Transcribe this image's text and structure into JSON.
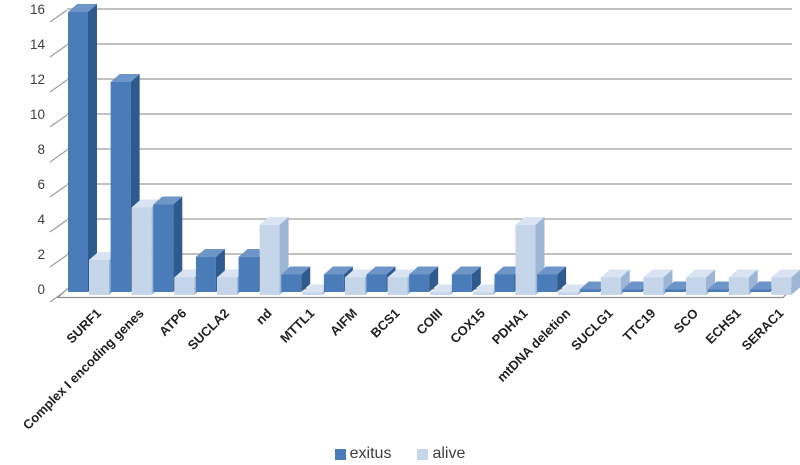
{
  "chart_data": {
    "type": "bar",
    "style": "3d-clustered-column",
    "title": "",
    "xlabel": "",
    "ylabel": "",
    "categories": [
      "SURF1",
      "Complex I encoding genes",
      "ATP6",
      "SUCLA2",
      "nd",
      "MTTL1",
      "AIFM",
      "BCS1",
      "COIII",
      "COX15",
      "PDHA1",
      "mtDNA deletion",
      "SUCLG1",
      "TTC19",
      "SCO",
      "ECHS1",
      "SERAC1"
    ],
    "series": [
      {
        "name": "exitus",
        "values": [
          16,
          12,
          5,
          2,
          2,
          1,
          1,
          1,
          1,
          1,
          1,
          1,
          0,
          0,
          0,
          0,
          0
        ],
        "color_front": "#4a7cba",
        "color_top": "#6e95c7",
        "color_side": "#2f5a8e"
      },
      {
        "name": "alive",
        "values": [
          2,
          5,
          1,
          1,
          4,
          0,
          1,
          1,
          0,
          0,
          4,
          0,
          1,
          1,
          1,
          1,
          1
        ],
        "color_front": "#c5d5ea",
        "color_top": "#d9e3f1",
        "color_side": "#9db6d5"
      }
    ],
    "ylim": [
      0,
      16
    ],
    "ytick_step": 2,
    "yticks": [
      "0",
      "2",
      "4",
      "6",
      "8",
      "10",
      "12",
      "14",
      "16"
    ],
    "grid": true,
    "legend_position": "bottom-center"
  },
  "axis_style": {
    "grid_color": "#9c9c9c",
    "floor_stroke": "#8f8f8f",
    "floor_fill": "#ffffff",
    "tick_label_color": "#3f3f3f",
    "category_label_color": "#1f1f1f"
  }
}
